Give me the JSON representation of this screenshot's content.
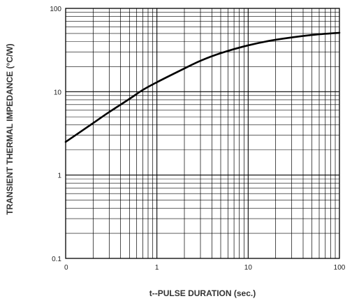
{
  "chart_data": {
    "type": "line",
    "title": "",
    "xlabel": "t--PULSE DURATION (sec.)",
    "ylabel": "TRANSIENT THERMAL IMPEDANCE (°C/W)",
    "xscale": "log",
    "yscale": "log",
    "xlim": [
      0.1,
      100
    ],
    "ylim": [
      0.1,
      100
    ],
    "x_tick_labels": [
      "0",
      "1",
      "10",
      "100"
    ],
    "y_tick_labels": [
      "0.1",
      "1",
      "10",
      "100"
    ],
    "grid": "on",
    "legend": "none",
    "series": [
      {
        "x": [
          0.1,
          0.2,
          0.3,
          0.5,
          0.7,
          1,
          2,
          3,
          5,
          10,
          20,
          50,
          100
        ],
        "y": [
          2.5,
          4.2,
          5.7,
          8.2,
          10.5,
          13,
          19,
          23.5,
          29,
          36,
          42,
          48,
          51
        ]
      }
    ]
  }
}
